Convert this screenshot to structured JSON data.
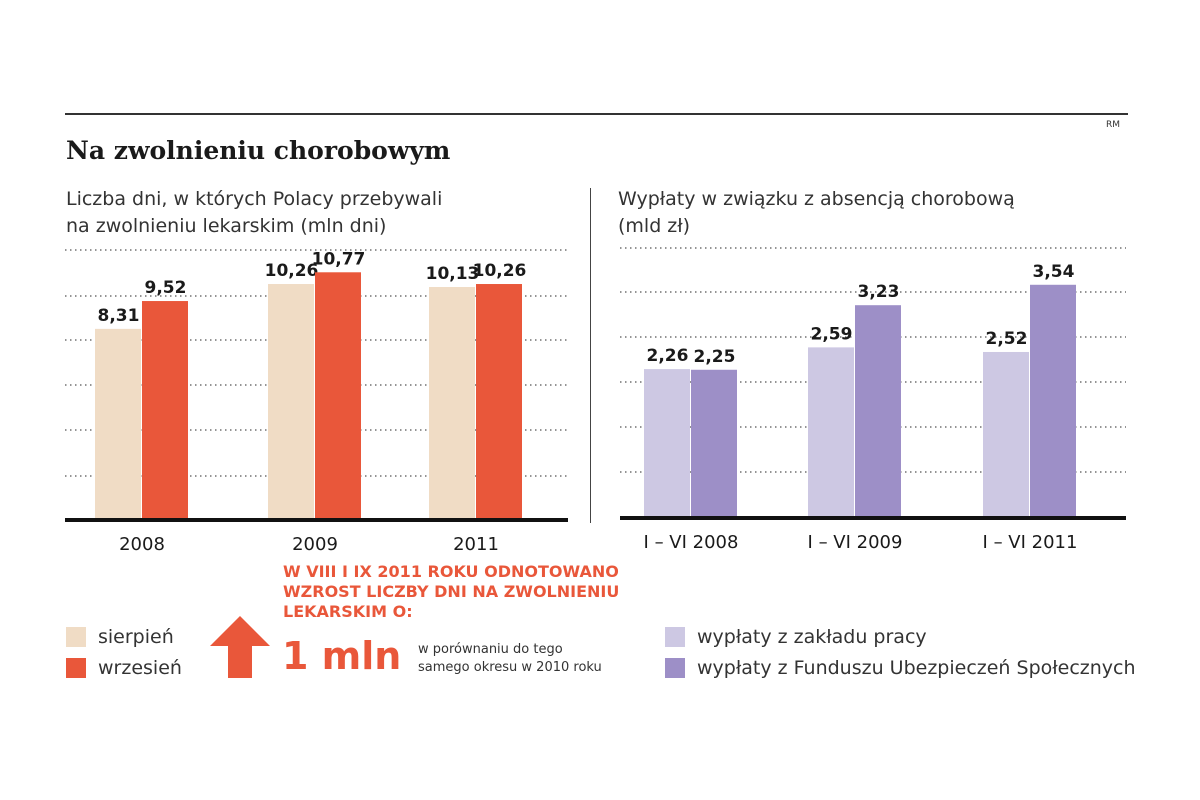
{
  "header": {
    "title": "Na zwolnieniu chorobowym",
    "credit": "RM"
  },
  "colors": {
    "sierpien": "#f0dcc5",
    "wrzesien": "#e9573a",
    "zaklad": "#cdc8e3",
    "zus": "#9d8fc7",
    "accent": "#e9573a"
  },
  "chart_data": [
    {
      "type": "bar",
      "subtitle_line1": "Liczba dni, w których Polacy przebywali",
      "subtitle_line2": "na zwolnieniu lekarskim (mln dni)",
      "categories": [
        "2008",
        "2009",
        "2011"
      ],
      "series": [
        {
          "name": "sierpień",
          "values": [
            8.31,
            10.26,
            10.13
          ],
          "labels": [
            "8,31",
            "10,26",
            "10,13"
          ]
        },
        {
          "name": "wrzesień",
          "values": [
            9.52,
            10.77,
            10.26
          ],
          "labels": [
            "9,52",
            "10,77",
            "10,26"
          ]
        }
      ],
      "ylim": [
        0,
        12
      ],
      "grid": true
    },
    {
      "type": "bar",
      "subtitle_line1": "Wypłaty w związku z absencją chorobową",
      "subtitle_line2": "(mld zł)",
      "categories": [
        "I – VI 2008",
        "I – VI 2009",
        "I – VI 2011"
      ],
      "series": [
        {
          "name": "wypłaty z zakładu pracy",
          "values": [
            2.26,
            2.59,
            2.52
          ],
          "labels": [
            "2,26",
            "2,59",
            "2,52"
          ]
        },
        {
          "name": "wypłaty z Funduszu Ubezpieczeń Społecznych",
          "values": [
            2.25,
            3.23,
            3.54
          ],
          "labels": [
            "2,25",
            "3,23",
            "3,54"
          ]
        }
      ],
      "ylim": [
        0,
        4.25
      ],
      "grid": true
    }
  ],
  "callout": {
    "headline": "W VIII I IX 2011 ROKU ODNOTOWANO WZROST LICZBY DNI NA ZWOLNIENIU LEKARSKIM O:",
    "value": "1 mln",
    "note_line1": "w porównaniu do tego",
    "note_line2": "samego okresu w 2010 roku",
    "icon": "arrow-up-icon"
  },
  "legend_left": [
    {
      "label": "sierpień"
    },
    {
      "label": "wrzesień"
    }
  ],
  "legend_right": [
    {
      "label": "wypłaty z zakładu pracy"
    },
    {
      "label": "wypłaty z Funduszu Ubezpieczeń Społecznych"
    }
  ]
}
